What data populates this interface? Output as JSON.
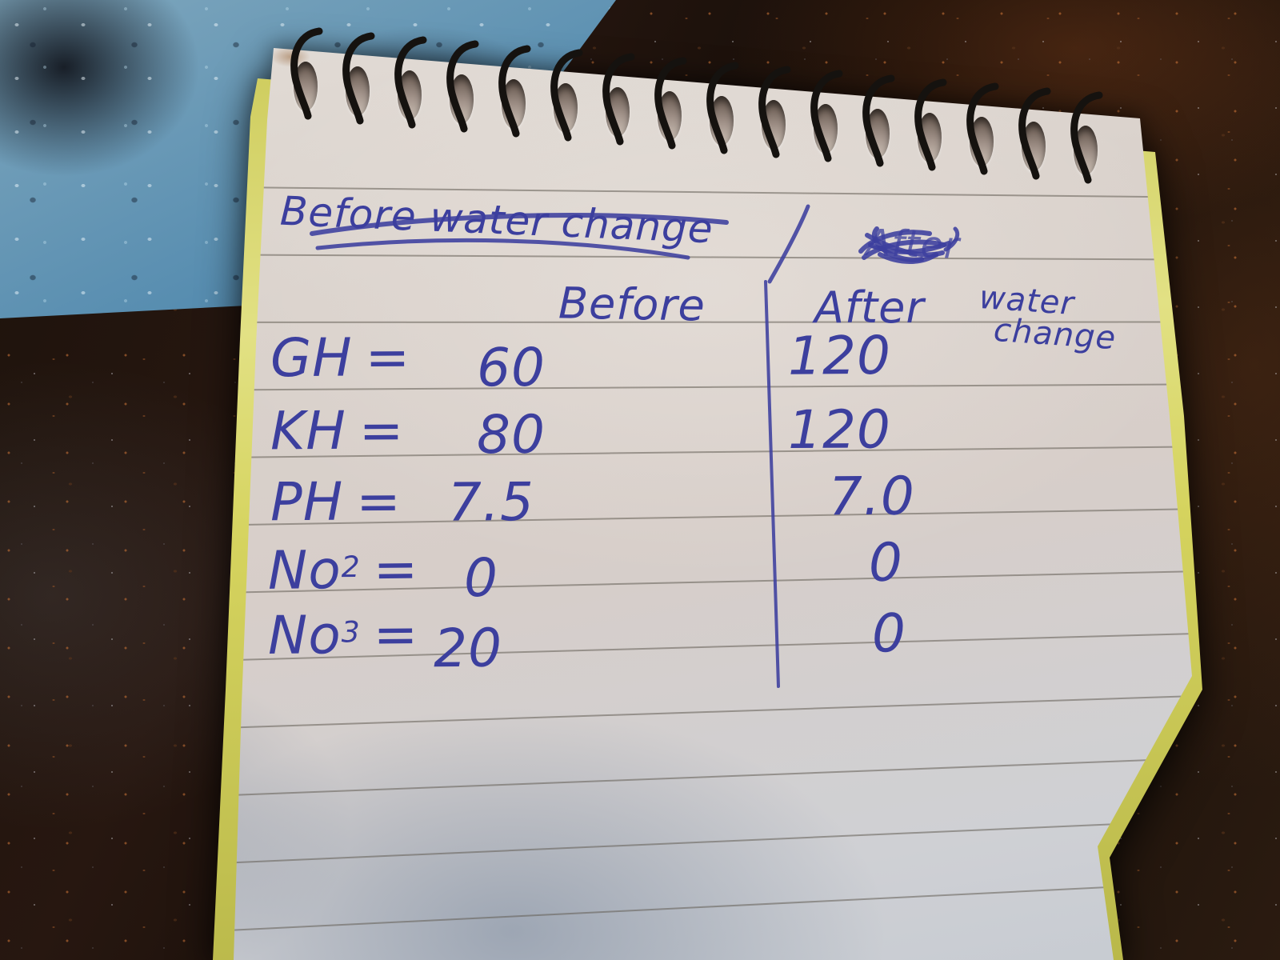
{
  "scene": {
    "countertop": "dark speckled granite worktop",
    "glass_board": "blue glass board",
    "notepad": "spiral-bound notepad page",
    "under_sheet": "yellow sheet",
    "coil_count": 16,
    "ruled_line_count": 12
  },
  "colors": {
    "ink": "#3c3f9e",
    "paper": "#d8d1cb",
    "yellow_sheet": "#d5d35e",
    "granite": "#170f0a",
    "glass_board": "#4e7f9e",
    "rule_line": "#6f6a63",
    "coil_wire": "#15120f"
  },
  "note": {
    "crossed_heading": "Before water change",
    "scribbled_heading": "After",
    "column_header_before": "Before",
    "column_header_after": "After",
    "column_header_after_note_line1": "water",
    "column_header_after_note_line2": "change",
    "equals_sign": "=",
    "rows": [
      {
        "parameter": "GH",
        "sup": "",
        "before": "60",
        "after": "120"
      },
      {
        "parameter": "KH",
        "sup": "",
        "before": "80",
        "after": "120"
      },
      {
        "parameter": "PH",
        "sup": "",
        "before": "7.5",
        "after": "7.0"
      },
      {
        "parameter": "No",
        "sup": "2",
        "before": "0",
        "after": "0"
      },
      {
        "parameter": "No",
        "sup": "3",
        "before": "20",
        "after": "0"
      }
    ]
  }
}
